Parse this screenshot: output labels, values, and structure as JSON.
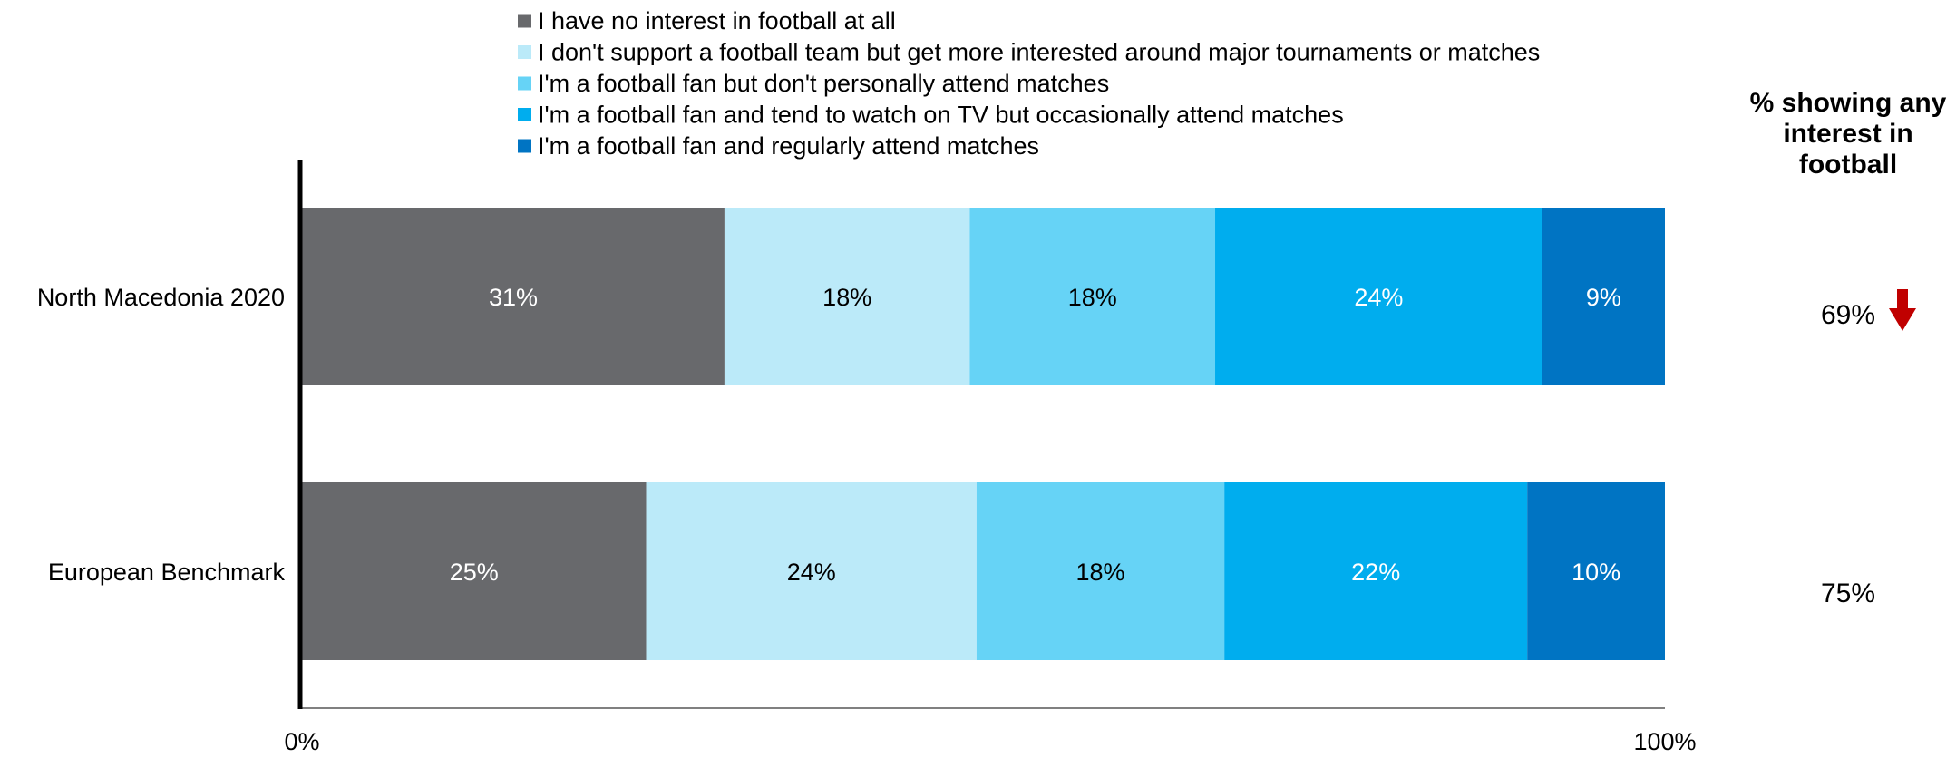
{
  "chart_data": {
    "type": "bar",
    "orientation": "horizontal",
    "stacked": true,
    "categories": [
      "North Macedonia 2020",
      "European Benchmark"
    ],
    "series": [
      {
        "name": "I have no interest in football at all",
        "values": [
          31,
          25
        ],
        "labels": [
          "31%",
          "25%"
        ],
        "color": "#68696C",
        "label_color": "#FFFFFF"
      },
      {
        "name": "I don't support a football team but get more interested around major tournaments or matches",
        "values": [
          18,
          24
        ],
        "labels": [
          "18%",
          "24%"
        ],
        "color": "#BBEAF9",
        "label_color": "#000000"
      },
      {
        "name": "I'm a football fan but don't personally attend matches",
        "values": [
          18,
          18
        ],
        "labels": [
          "18%",
          "18%"
        ],
        "color": "#66D3F6",
        "label_color": "#000000"
      },
      {
        "name": "I'm a football fan and tend to watch on TV but occasionally attend matches",
        "values": [
          24,
          22
        ],
        "labels": [
          "24%",
          "22%"
        ],
        "color": "#00ADEE",
        "label_color": "#FFFFFF"
      },
      {
        "name": "I'm a football fan and regularly attend matches",
        "values": [
          9,
          10
        ],
        "labels": [
          "9%",
          "10%"
        ],
        "color": "#0074C3",
        "label_color": "#FFFFFF"
      }
    ],
    "x_ticks": [
      "0%",
      "100%"
    ],
    "xlim": [
      0,
      100
    ],
    "legend_position": "top",
    "grid": false,
    "side_panel": {
      "title_lines": [
        "% showing any",
        "interest in",
        "football"
      ],
      "values": [
        "69%",
        "75%"
      ],
      "trend": [
        "down",
        ""
      ],
      "trend_icon": "red-down-arrow-icon",
      "trend_color": "#C00000"
    }
  }
}
